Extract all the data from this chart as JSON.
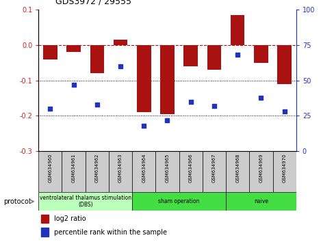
{
  "title": "GDS3972 / 29555",
  "samples": [
    "GSM634960",
    "GSM634961",
    "GSM634962",
    "GSM634963",
    "GSM634964",
    "GSM634965",
    "GSM634966",
    "GSM634967",
    "GSM634968",
    "GSM634969",
    "GSM634970"
  ],
  "log2_ratio": [
    -0.04,
    -0.02,
    -0.08,
    0.015,
    -0.19,
    -0.195,
    -0.06,
    -0.07,
    0.085,
    -0.05,
    -0.11
  ],
  "percentile_rank": [
    30,
    47,
    33,
    60,
    18,
    22,
    35,
    32,
    68,
    38,
    28
  ],
  "ylim_left": [
    -0.3,
    0.1
  ],
  "ylim_right": [
    0,
    100
  ],
  "yticks_left": [
    -0.3,
    -0.2,
    -0.1,
    0.0,
    0.1
  ],
  "yticks_right": [
    0,
    25,
    50,
    75,
    100
  ],
  "dotted_lines": [
    -0.1,
    -0.2
  ],
  "bar_color": "#aa1111",
  "dot_color": "#2233bb",
  "protocol_groups": [
    {
      "label": "ventrolateral thalamus stimulation\n(DBS)",
      "start": 0,
      "end": 3,
      "color": "#bbffbb"
    },
    {
      "label": "sham operation",
      "start": 4,
      "end": 7,
      "color": "#44dd44"
    },
    {
      "label": "naive",
      "start": 8,
      "end": 10,
      "color": "#44dd44"
    }
  ],
  "legend_bar_label": "log2 ratio",
  "legend_dot_label": "percentile rank within the sample",
  "protocol_label": "protocol",
  "background_color": "#ffffff"
}
